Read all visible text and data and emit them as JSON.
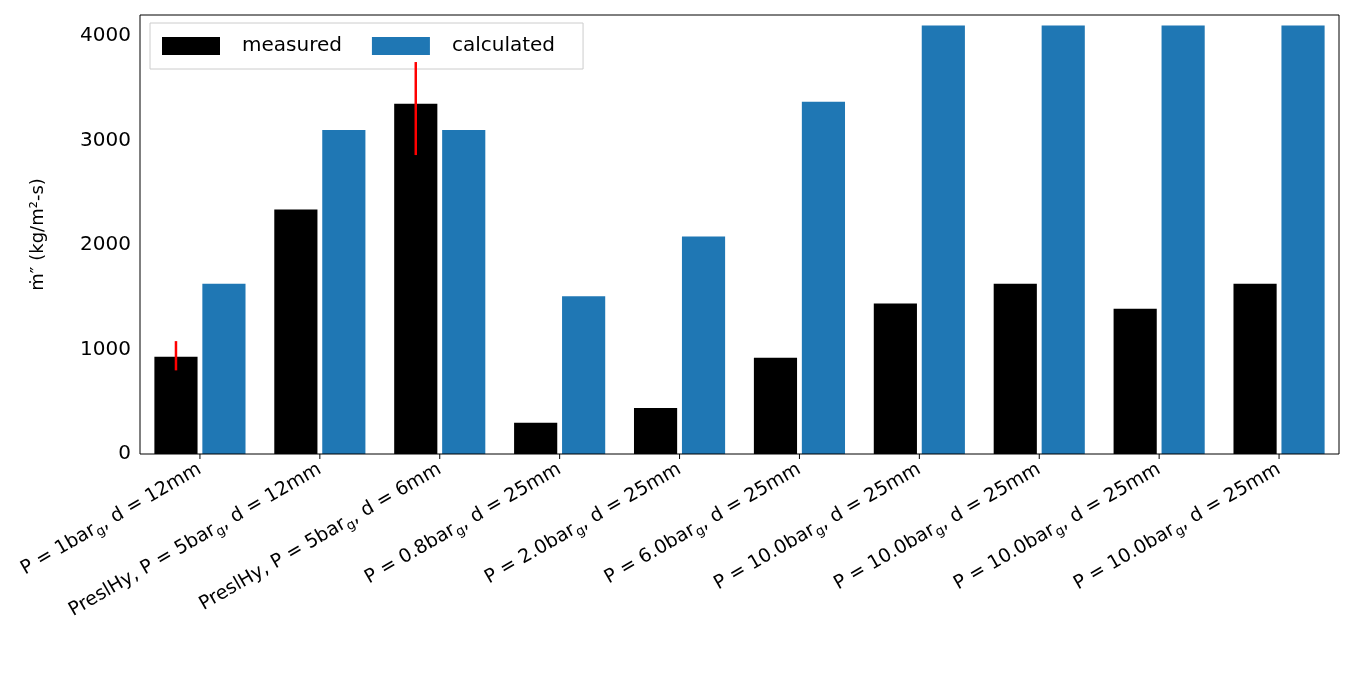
{
  "chart_data": {
    "type": "bar",
    "ylabel": "ṁ″ (kg/m²-s)",
    "categories": [
      "P = 1bar$_{g}$, d = 12mm",
      "PreslHy, P = 5bar$_{g}$, d = 12mm",
      "PreslHy, P = 5bar$_{g}$, d = 6mm",
      "P = 0.8bar$_{g}$, d = 25mm",
      "P = 2.0bar$_{g}$, d = 25mm",
      "P = 6.0bar$_{g}$, d = 25mm",
      "P = 10.0bar$_{g}$, d = 25mm",
      "P = 10.0bar$_{g}$, d = 25mm",
      "P = 10.0bar$_{g}$, d = 25mm",
      "P = 10.0bar$_{g}$, d = 25mm"
    ],
    "series": [
      {
        "name": "measured",
        "color": "#000000",
        "values": [
          930,
          2340,
          3350,
          300,
          440,
          920,
          1440,
          1630,
          1390,
          1630
        ],
        "errors": [
          [
            800,
            1080
          ],
          null,
          [
            2860,
            3750
          ],
          null,
          null,
          null,
          null,
          null,
          null,
          null
        ]
      },
      {
        "name": "calculated",
        "color": "#1f77b4",
        "values": [
          1630,
          3100,
          3100,
          1510,
          2080,
          3370,
          4100,
          4100,
          4100,
          4100
        ]
      }
    ],
    "ylim": [
      0,
      4200
    ],
    "yticks": [
      0,
      1000,
      2000,
      3000,
      4000
    ],
    "grid": false,
    "legend": "top left"
  }
}
